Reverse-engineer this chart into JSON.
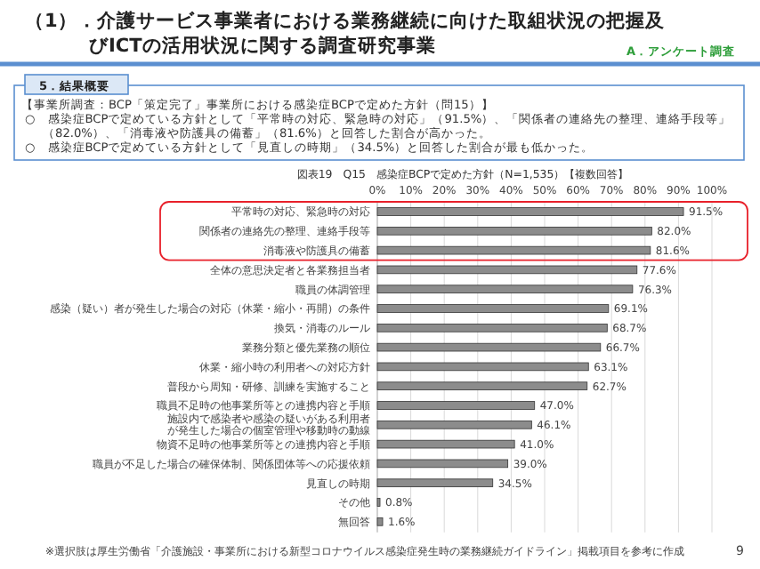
{
  "chart_data": {
    "type": "bar",
    "orientation": "horizontal",
    "title": "図表19　Q15　感染症BCPで定めた方針（N=1,535）【複数回答】",
    "categories": [
      "平常時の対応、緊急時の対応",
      "関係者の連絡先の整理、連絡手段等",
      "消毒液や防護具の備蓄",
      "全体の意思決定者と各業務担当者",
      "職員の体調管理",
      "感染（疑い）者が発生した場合の対応（休業・縮小・再開）の条件",
      "換気・消毒のルール",
      "業務分類と優先業務の順位",
      "休業・縮小時の利用者への対応方針",
      "普段から周知・研修、訓練を実施すること",
      "職員不足時の他事業所等との連携内容と手順",
      "施設内で感染者や感染の疑いがある利用者が発生した場合の個室管理や移動時の動線",
      "物資不足時の他事業所等との連携内容と手順",
      "職員が不足した場合の確保体制、関係団体等への応援依頼",
      "見直しの時期",
      "その他",
      "無回答"
    ],
    "values": [
      91.5,
      82.0,
      81.6,
      77.6,
      76.3,
      69.1,
      68.7,
      66.7,
      63.1,
      62.7,
      47.0,
      46.1,
      41.0,
      39.0,
      34.5,
      0.8,
      1.6
    ],
    "value_labels": [
      "91.5%",
      "82.0%",
      "81.6%",
      "77.6%",
      "76.3%",
      "69.1%",
      "68.7%",
      "66.7%",
      "63.1%",
      "62.7%",
      "47.0%",
      "46.1%",
      "41.0%",
      "39.0%",
      "34.5%",
      "0.8%",
      "1.6%"
    ],
    "color": "#8c8c8c",
    "xlim": [
      0,
      100
    ],
    "xticks": [
      {
        "value": 0,
        "label": "0%"
      },
      {
        "value": 10,
        "label": "10%"
      },
      {
        "value": 20,
        "label": "20%"
      },
      {
        "value": 30,
        "label": "30%"
      },
      {
        "value": 40,
        "label": "40%"
      },
      {
        "value": 50,
        "label": "50%"
      },
      {
        "value": 60,
        "label": "60%"
      },
      {
        "value": 70,
        "label": "70%"
      },
      {
        "value": 80,
        "label": "80%"
      },
      {
        "value": 90,
        "label": "90%"
      },
      {
        "value": 100,
        "label": "100%"
      }
    ],
    "grid": "x",
    "annotations": [
      "（1）．介護サービス事業者における業務継続に向けた取組状況の把握及びICTの活用状況に関する調査研究事業",
      "A．アンケート調査",
      "5．結果概要",
      "【事業所調査：BCP「策定完了」事業所における感染症BCPで定めた方針（問15）】",
      "○　感染症BCPで定めている方針として「平常時の対応、緊急時の対応」（91.5%）、「関係者の連絡先の整理、連絡手段等」（82.0%）、「消毒液や防護具の備蓄」（81.6%）と回答した割合が高かった。",
      "○　感染症BCPで定めている方針として「見直しの時期」（34.5%）と回答した割合が最も低かった。",
      "※選択肢は厚生労働省「介護施設・事業所における新型コロナウイルス感染症発生時の業務継続ガイドライン」掲載項目を参考に作成",
      "9"
    ]
  }
}
